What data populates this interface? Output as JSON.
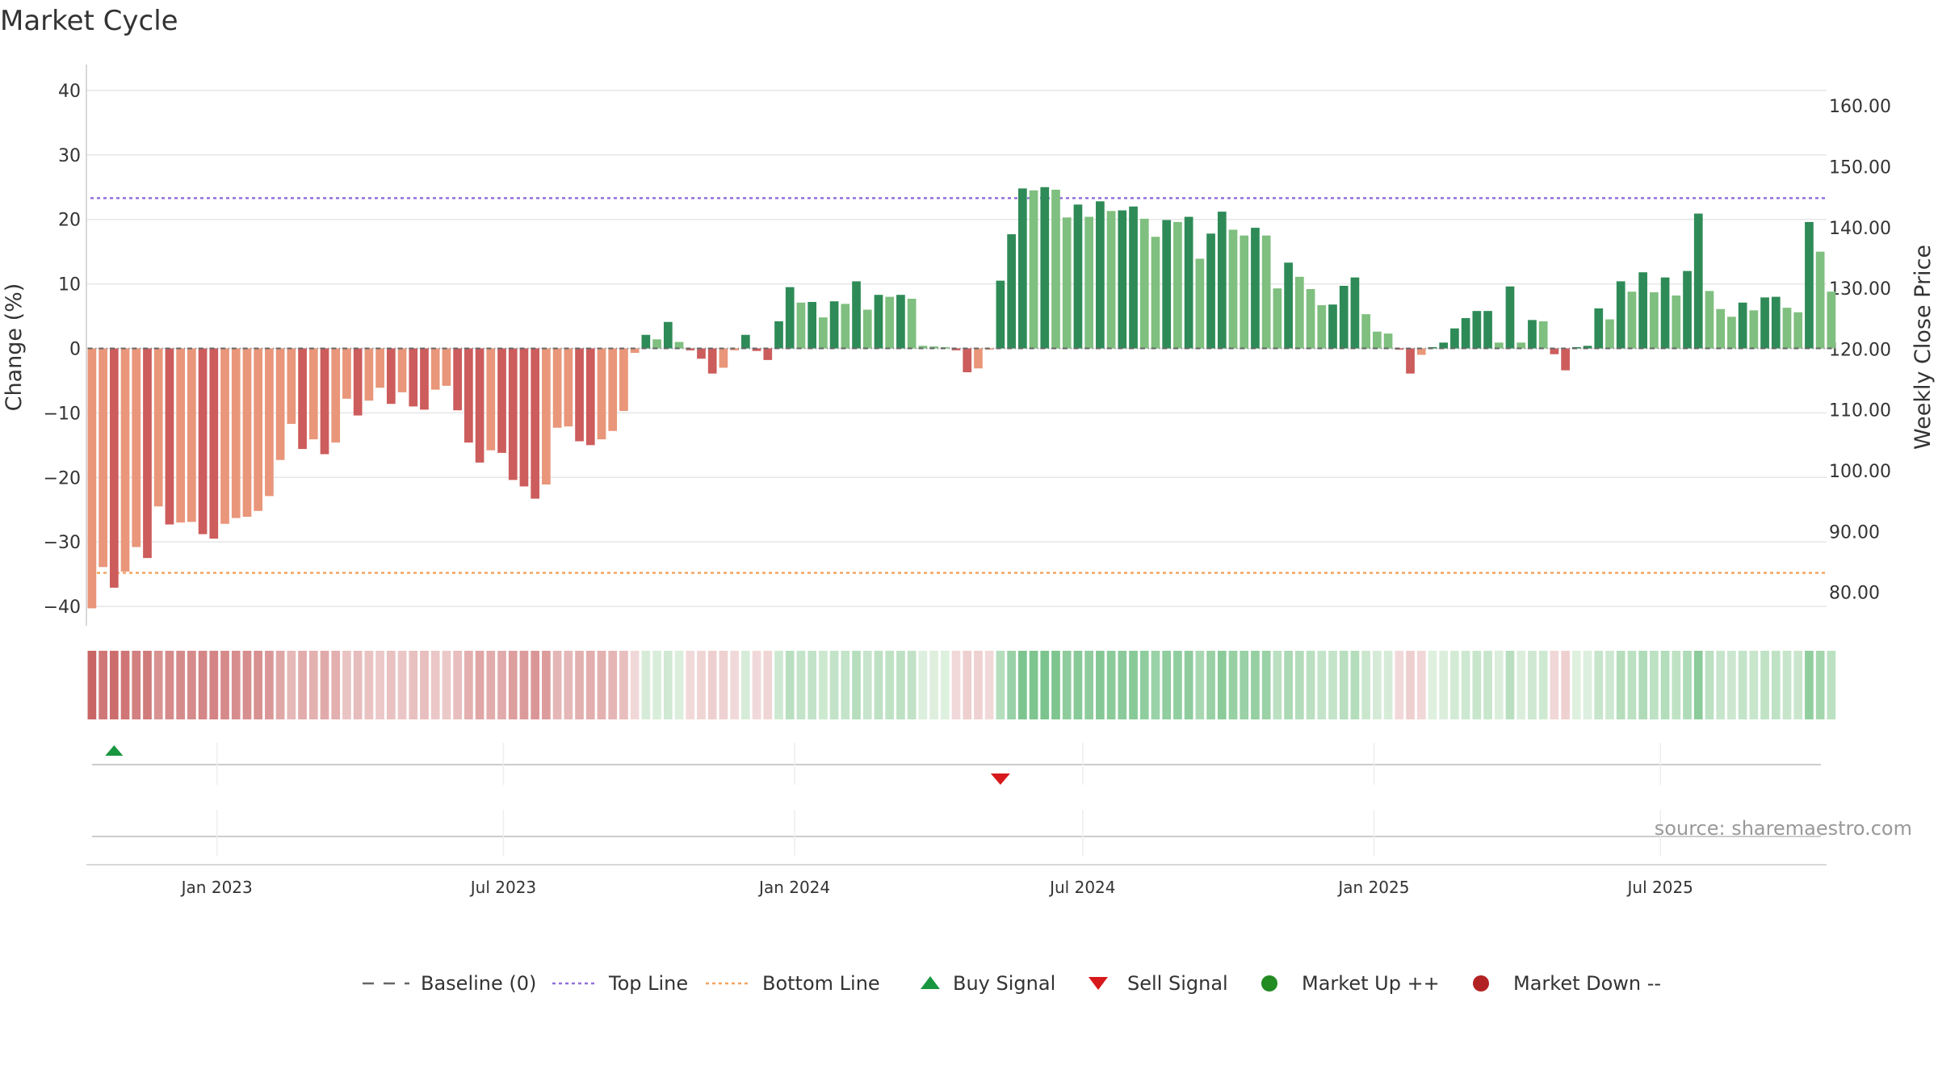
{
  "chart_data": {
    "type": "bar",
    "title": "Market Cycle",
    "ylabel": "Change (%)",
    "y2label": "Weekly Close Price",
    "ylim": [
      -43,
      44
    ],
    "y2lim": [
      74.5,
      166.8
    ],
    "yticks": [
      40,
      30,
      20,
      10,
      0,
      -10,
      -20,
      -30,
      -40
    ],
    "yticks_display": [
      "40",
      "30",
      "20",
      "10",
      "0",
      "−10",
      "−20",
      "−30",
      "−40"
    ],
    "y2ticks": [
      "160.00",
      "150.00",
      "140.00",
      "130.00",
      "120.00",
      "110.00",
      "100.00",
      "90.00",
      "80.00"
    ],
    "y2tick_values": [
      160,
      150,
      140,
      130,
      120,
      110,
      100,
      90,
      80
    ],
    "x_start": "2022-10-11",
    "x_end": "2025-10-14",
    "x_tick_labels": [
      {
        "date": "2023-01-01",
        "label": "Jan 2023"
      },
      {
        "date": "2023-07-01",
        "label": "Jul 2023"
      },
      {
        "date": "2024-01-01",
        "label": "Jan 2024"
      },
      {
        "date": "2024-07-01",
        "label": "Jul 2024"
      },
      {
        "date": "2025-01-01",
        "label": "Jan 2025"
      },
      {
        "date": "2025-07-01",
        "label": "Jul 2025"
      }
    ],
    "grid": true,
    "top_line": 23.3,
    "bottom_line": -34.8,
    "baseline": 0,
    "series": [
      {
        "name": "Change (%)",
        "first_week": "2022-10-14",
        "interval_days": 7,
        "values": [
          -40.3,
          -33.9,
          -37.1,
          -34.6,
          -30.8,
          -32.5,
          -24.5,
          -27.3,
          -27.0,
          -26.9,
          -28.8,
          -29.5,
          -27.2,
          -26.3,
          -26.1,
          -25.2,
          -22.9,
          -17.3,
          -11.7,
          -15.6,
          -14.1,
          -16.4,
          -14.6,
          -7.8,
          -10.4,
          -8.1,
          -6.1,
          -8.6,
          -6.8,
          -9.0,
          -9.5,
          -6.4,
          -5.8,
          -9.6,
          -14.6,
          -17.7,
          -15.8,
          -16.2,
          -20.4,
          -21.4,
          -23.3,
          -21.1,
          -12.3,
          -12.1,
          -14.4,
          -15.0,
          -14.1,
          -12.8,
          -9.7,
          -0.7,
          2.1,
          1.4,
          4.1,
          1.0,
          -0.3,
          -1.6,
          -3.9,
          -3.0,
          -0.3,
          2.1,
          -0.4,
          -1.8,
          4.2,
          9.5,
          7.1,
          7.2,
          4.8,
          7.3,
          6.9,
          10.4,
          6.0,
          8.3,
          8.0,
          8.3,
          7.7,
          0.4,
          0.3,
          0.2,
          -0.3,
          -3.7,
          -3.1,
          -0.2,
          10.5,
          17.7,
          24.8,
          24.5,
          25.0,
          24.6,
          20.3,
          22.3,
          20.4,
          22.8,
          21.3,
          21.4,
          22.0,
          20.1,
          17.3,
          19.9,
          19.6,
          20.4,
          13.9,
          17.8,
          21.2,
          18.4,
          17.5,
          18.7,
          17.5,
          9.3,
          13.3,
          11.1,
          9.2,
          6.7,
          6.8,
          9.7,
          11.0,
          5.3,
          2.6,
          2.3,
          -0.2,
          -3.9,
          -1.0,
          0.2,
          0.9,
          3.1,
          4.7,
          5.8,
          5.8,
          0.9,
          9.6,
          0.9,
          4.4,
          4.2,
          -0.9,
          -3.4,
          0.2,
          0.4,
          6.2,
          4.5,
          10.4,
          8.8,
          11.8,
          8.7,
          11.0,
          8.2,
          12.0,
          20.9,
          8.9,
          6.1,
          4.9,
          7.1,
          5.9,
          7.9,
          8.0,
          6.3,
          5.6,
          19.6,
          15.0,
          8.8
        ]
      }
    ],
    "signals": [
      {
        "type": "Buy Signal",
        "date": "2022-10-28"
      },
      {
        "type": "Sell Signal",
        "date": "2024-05-10"
      }
    ],
    "legend_position": "bottom",
    "legend": [
      {
        "key": "baseline",
        "label": "Baseline (0)"
      },
      {
        "key": "top",
        "label": "Top Line"
      },
      {
        "key": "bottom",
        "label": "Bottom Line"
      },
      {
        "key": "buy",
        "label": "Buy Signal"
      },
      {
        "key": "sell",
        "label": "Sell Signal"
      },
      {
        "key": "up",
        "label": "Market Up ++"
      },
      {
        "key": "down",
        "label": "Market Down --"
      }
    ],
    "source": "source: sharemaestro.com"
  },
  "colors": {
    "up_dark": "#2e8b57",
    "up_light": "#7fbf7f",
    "down_dark": "#cd5c5c",
    "down_light": "#e9967a",
    "top_line": "#9370db",
    "bottom_line": "#f4a460",
    "baseline": "#666666",
    "buy": "#1a9641",
    "sell": "#d7191c",
    "market_up": "#228b22",
    "market_down": "#b22222",
    "grid": "#e6e6e6"
  }
}
